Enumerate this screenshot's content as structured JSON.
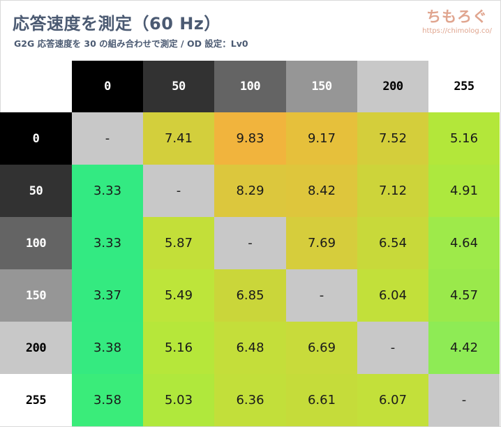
{
  "header": {
    "title": "応答速度を測定（60 Hz）",
    "subtitle": "G2G 応答速度を 30 の組み合わせで測定 / OD 設定：Lv0"
  },
  "brand": {
    "logo_text": "ちもろぐ",
    "url": "https://chimolog.co/"
  },
  "colors": {
    "title_text": "#4b5a72",
    "brand_text": "#e0a58f",
    "diagonal_gray": "#c8c8c8"
  },
  "chart_data": {
    "type": "heatmap",
    "title": "応答速度を測定（60 Hz）",
    "subtitle": "G2G 応答速度を 30 の組み合わせで測定 / OD 設定：Lv0",
    "columns": [
      "0",
      "50",
      "100",
      "150",
      "200",
      "255"
    ],
    "rows": [
      "0",
      "50",
      "100",
      "150",
      "200",
      "255"
    ],
    "cells": [
      [
        "-",
        "7.41",
        "9.83",
        "9.17",
        "7.52",
        "5.16"
      ],
      [
        "3.33",
        "-",
        "8.29",
        "8.42",
        "7.12",
        "4.91"
      ],
      [
        "3.33",
        "5.87",
        "-",
        "7.69",
        "6.54",
        "4.64"
      ],
      [
        "3.37",
        "5.49",
        "6.85",
        "-",
        "6.04",
        "4.57"
      ],
      [
        "3.38",
        "5.16",
        "6.48",
        "6.69",
        "-",
        "4.42"
      ],
      [
        "3.58",
        "5.03",
        "6.36",
        "6.61",
        "6.07",
        "-"
      ]
    ],
    "header_backgrounds": [
      "#000000",
      "#323232",
      "#646464",
      "#969696",
      "#c8c8c8",
      "#ffffff"
    ],
    "header_text_colors": [
      "#ffffff",
      "#ffffff",
      "#ffffff",
      "#ffffff",
      "#000000",
      "#000000"
    ],
    "cell_colors": [
      [
        "#c8c8c8",
        "#d3cf3c",
        "#f1b43d",
        "#e6c03b",
        "#d4ce3b",
        "#b3e73a"
      ],
      [
        "#33ea82",
        "#c8c8c8",
        "#dcc73d",
        "#dec63c",
        "#cdd43a",
        "#ade83e"
      ],
      [
        "#33ea82",
        "#c3df39",
        "#c8c8c8",
        "#d6cd3c",
        "#c8d93a",
        "#9eea4a"
      ],
      [
        "#34ea80",
        "#bde53a",
        "#cad63a",
        "#c8c8c8",
        "#c2e03a",
        "#9ae94b"
      ],
      [
        "#35ea80",
        "#b6e73a",
        "#c4de3a",
        "#c8db3b",
        "#c8c8c8",
        "#8eeb55"
      ],
      [
        "#3aec7a",
        "#b0e83c",
        "#c2df3a",
        "#c5dc3a",
        "#c3e03a",
        "#c8c8c8"
      ]
    ]
  }
}
